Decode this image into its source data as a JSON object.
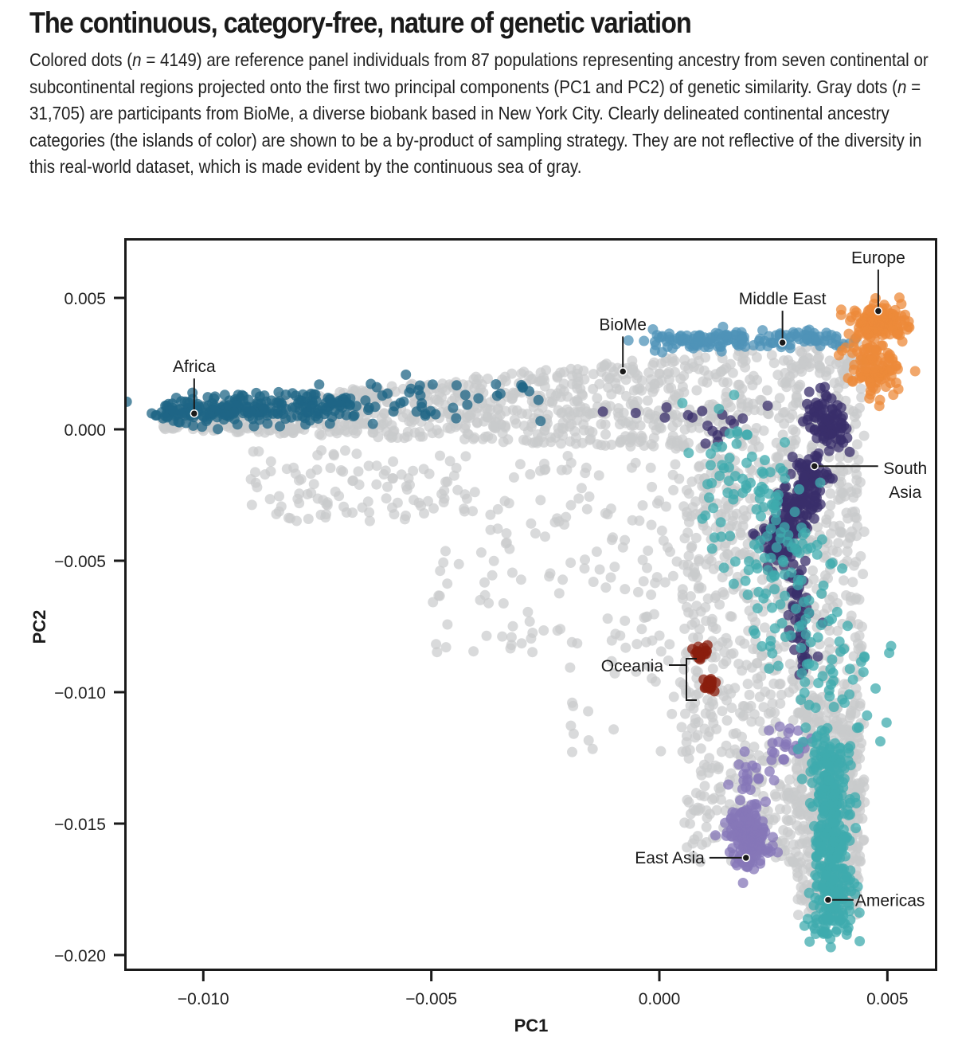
{
  "header": {
    "title": "The continuous, category-free, nature of genetic variation",
    "caption_parts": [
      "Colored dots (",
      "n",
      " = 4149) are reference panel individuals from 87 populations representing ancestry from seven continental or subcontinental regions projected onto the first two principal components (PC1 and PC2) of genetic similarity. Gray dots (",
      "n",
      " = 31,705) are participants from BioMe, a diverse biobank based in New York City. Clearly delineated continental ancestry categories (the islands of color) are shown to be a by-product of sampling strategy. They are not reflective of the diversity in this real-world dataset, which is made evident by the continuous sea of gray."
    ]
  },
  "chart_data": {
    "type": "scatter",
    "title": "The continuous, category-free, nature of genetic variation",
    "xlabel": "PC1",
    "ylabel": "PC2",
    "xlim": [
      -0.0117,
      0.0061
    ],
    "ylim": [
      -0.021,
      0.0072
    ],
    "x_ticks": [
      -0.01,
      -0.005,
      0.0,
      0.005
    ],
    "x_tick_labels": [
      "−0.010",
      "−0.005",
      "0.000",
      "0.005"
    ],
    "y_ticks": [
      0.005,
      0.0,
      -0.005,
      -0.01,
      -0.015,
      -0.02
    ],
    "y_tick_labels": [
      "0.005",
      "0.000",
      "−0.005",
      "−0.010",
      "−0.015",
      "−0.020"
    ],
    "grid": false,
    "series": [
      {
        "name": "BioMe",
        "color": "#c9cacc",
        "n": 31705
      },
      {
        "name": "Africa",
        "color": "#1f6585"
      },
      {
        "name": "Middle East",
        "color": "#4f93b8"
      },
      {
        "name": "Europe",
        "color": "#ec8a3a"
      },
      {
        "name": "South Asia",
        "color": "#3a2f6b"
      },
      {
        "name": "East Asia",
        "color": "#8677b8"
      },
      {
        "name": "Americas",
        "color": "#3fabad"
      },
      {
        "name": "Oceania",
        "color": "#8a1e0e"
      }
    ],
    "annotations": [
      {
        "label": "Africa",
        "x": -0.0102,
        "y": 0.0006
      },
      {
        "label": "BioMe",
        "x": -0.0008,
        "y": 0.0022
      },
      {
        "label": "Middle East",
        "x": 0.0027,
        "y": 0.0033
      },
      {
        "label": "Europe",
        "x": 0.0048,
        "y": 0.0045
      },
      {
        "label": "South Asia",
        "x": 0.0034,
        "y": -0.0014
      },
      {
        "label": "Oceania",
        "x": 0.0009,
        "y": -0.0095
      },
      {
        "label": "East Asia",
        "x": 0.0019,
        "y": -0.0163
      },
      {
        "label": "Americas",
        "x": 0.0037,
        "y": -0.0179
      }
    ],
    "south_asia_label_lines": [
      "South",
      "Asia"
    ],
    "gray_regions": [
      {
        "shape": "band",
        "x0": -0.0109,
        "x1": 0.0045,
        "ytop0": 0.0008,
        "ytop1": 0.0035,
        "ybot0": 0.0,
        "ybot1": -0.001,
        "count": 1100
      },
      {
        "shape": "box",
        "x": [
          0.0005,
          0.0045
        ],
        "y": [
          -0.0165,
          -0.001
        ],
        "count": 900
      },
      {
        "shape": "box",
        "x": [
          0.003,
          0.0044
        ],
        "y": [
          -0.0185,
          -0.01
        ],
        "count": 300
      },
      {
        "shape": "box",
        "x": [
          -0.005,
          0.0005
        ],
        "y": [
          -0.0085,
          -0.001
        ],
        "count": 160
      },
      {
        "shape": "box",
        "x": [
          -0.009,
          -0.005
        ],
        "y": [
          -0.0035,
          -0.0008
        ],
        "count": 90
      },
      {
        "shape": "box",
        "x": [
          -0.002,
          0.001
        ],
        "y": [
          -0.013,
          -0.008
        ],
        "count": 30
      }
    ],
    "colored_clusters": [
      {
        "series": "Africa",
        "cx": [
          -0.0108,
          -0.007
        ],
        "cy": [
          0.0006,
          0.0009
        ],
        "sx": 0.00035,
        "sy": 0.00028,
        "count": 260
      },
      {
        "series": "Africa",
        "cx": [
          -0.007,
          -0.0025
        ],
        "cy": [
          0.0009,
          0.0013
        ],
        "sx": 0.00045,
        "sy": 0.0004,
        "count": 45
      },
      {
        "series": "Middle East",
        "cx": [
          -0.0001,
          0.004
        ],
        "cy": [
          0.0034,
          0.0035
        ],
        "sx": 0.0003,
        "sy": 0.00018,
        "count": 160
      },
      {
        "series": "Europe",
        "cx": [
          0.0047,
          0.005
        ],
        "cy": [
          0.004,
          0.0042
        ],
        "sx": 0.0003,
        "sy": 0.00035,
        "count": 140
      },
      {
        "series": "Europe",
        "cx": [
          0.0046,
          0.0048
        ],
        "cy": [
          0.003,
          0.0015
        ],
        "sx": 0.00025,
        "sy": 0.0003,
        "count": 110
      },
      {
        "series": "South Asia",
        "cx": [
          0.0035,
          0.0038
        ],
        "cy": [
          0.0008,
          -0.0002
        ],
        "sx": 0.00022,
        "sy": 0.0004,
        "count": 90
      },
      {
        "series": "South Asia",
        "cx": [
          0.0034,
          0.0025
        ],
        "cy": [
          -0.0013,
          -0.005
        ],
        "sx": 0.0002,
        "sy": 0.0003,
        "count": 220
      },
      {
        "series": "South Asia",
        "cx": [
          0.003,
          0.0032
        ],
        "cy": [
          -0.0055,
          -0.009
        ],
        "sx": 0.00012,
        "sy": 0.0003,
        "count": 45
      },
      {
        "series": "South Asia",
        "cx": [
          -0.0015,
          0.0025
        ],
        "cy": [
          0.0007,
          0.0
        ],
        "sx": 0.0005,
        "sy": 0.0004,
        "count": 18
      },
      {
        "series": "East Asia",
        "cx": [
          0.0019,
          0.002
        ],
        "cy": [
          -0.0148,
          -0.0162
        ],
        "sx": 0.00022,
        "sy": 0.00045,
        "count": 170
      },
      {
        "series": "East Asia",
        "cx": [
          0.0018,
          0.0031
        ],
        "cy": [
          -0.0135,
          -0.0115
        ],
        "sx": 0.0002,
        "sy": 0.0003,
        "count": 40
      },
      {
        "series": "Americas",
        "cx": [
          0.0037,
          0.0038
        ],
        "cy": [
          -0.012,
          -0.019
        ],
        "sx": 0.00022,
        "sy": 0.0004,
        "count": 420
      },
      {
        "series": "Americas",
        "cx": [
          0.0012,
          0.0042
        ],
        "cy": [
          0.0005,
          -0.011
        ],
        "sx": 0.0006,
        "sy": 0.0008,
        "count": 200
      },
      {
        "series": "Oceania",
        "cx": [
          0.0009,
          0.0009
        ],
        "cy": [
          -0.0085,
          -0.0085
        ],
        "sx": 8e-05,
        "sy": 0.00012,
        "count": 20
      },
      {
        "series": "Oceania",
        "cx": [
          0.0011,
          0.0011
        ],
        "cy": [
          -0.0097,
          -0.0097
        ],
        "sx": 8e-05,
        "sy": 0.00014,
        "count": 22
      }
    ]
  }
}
